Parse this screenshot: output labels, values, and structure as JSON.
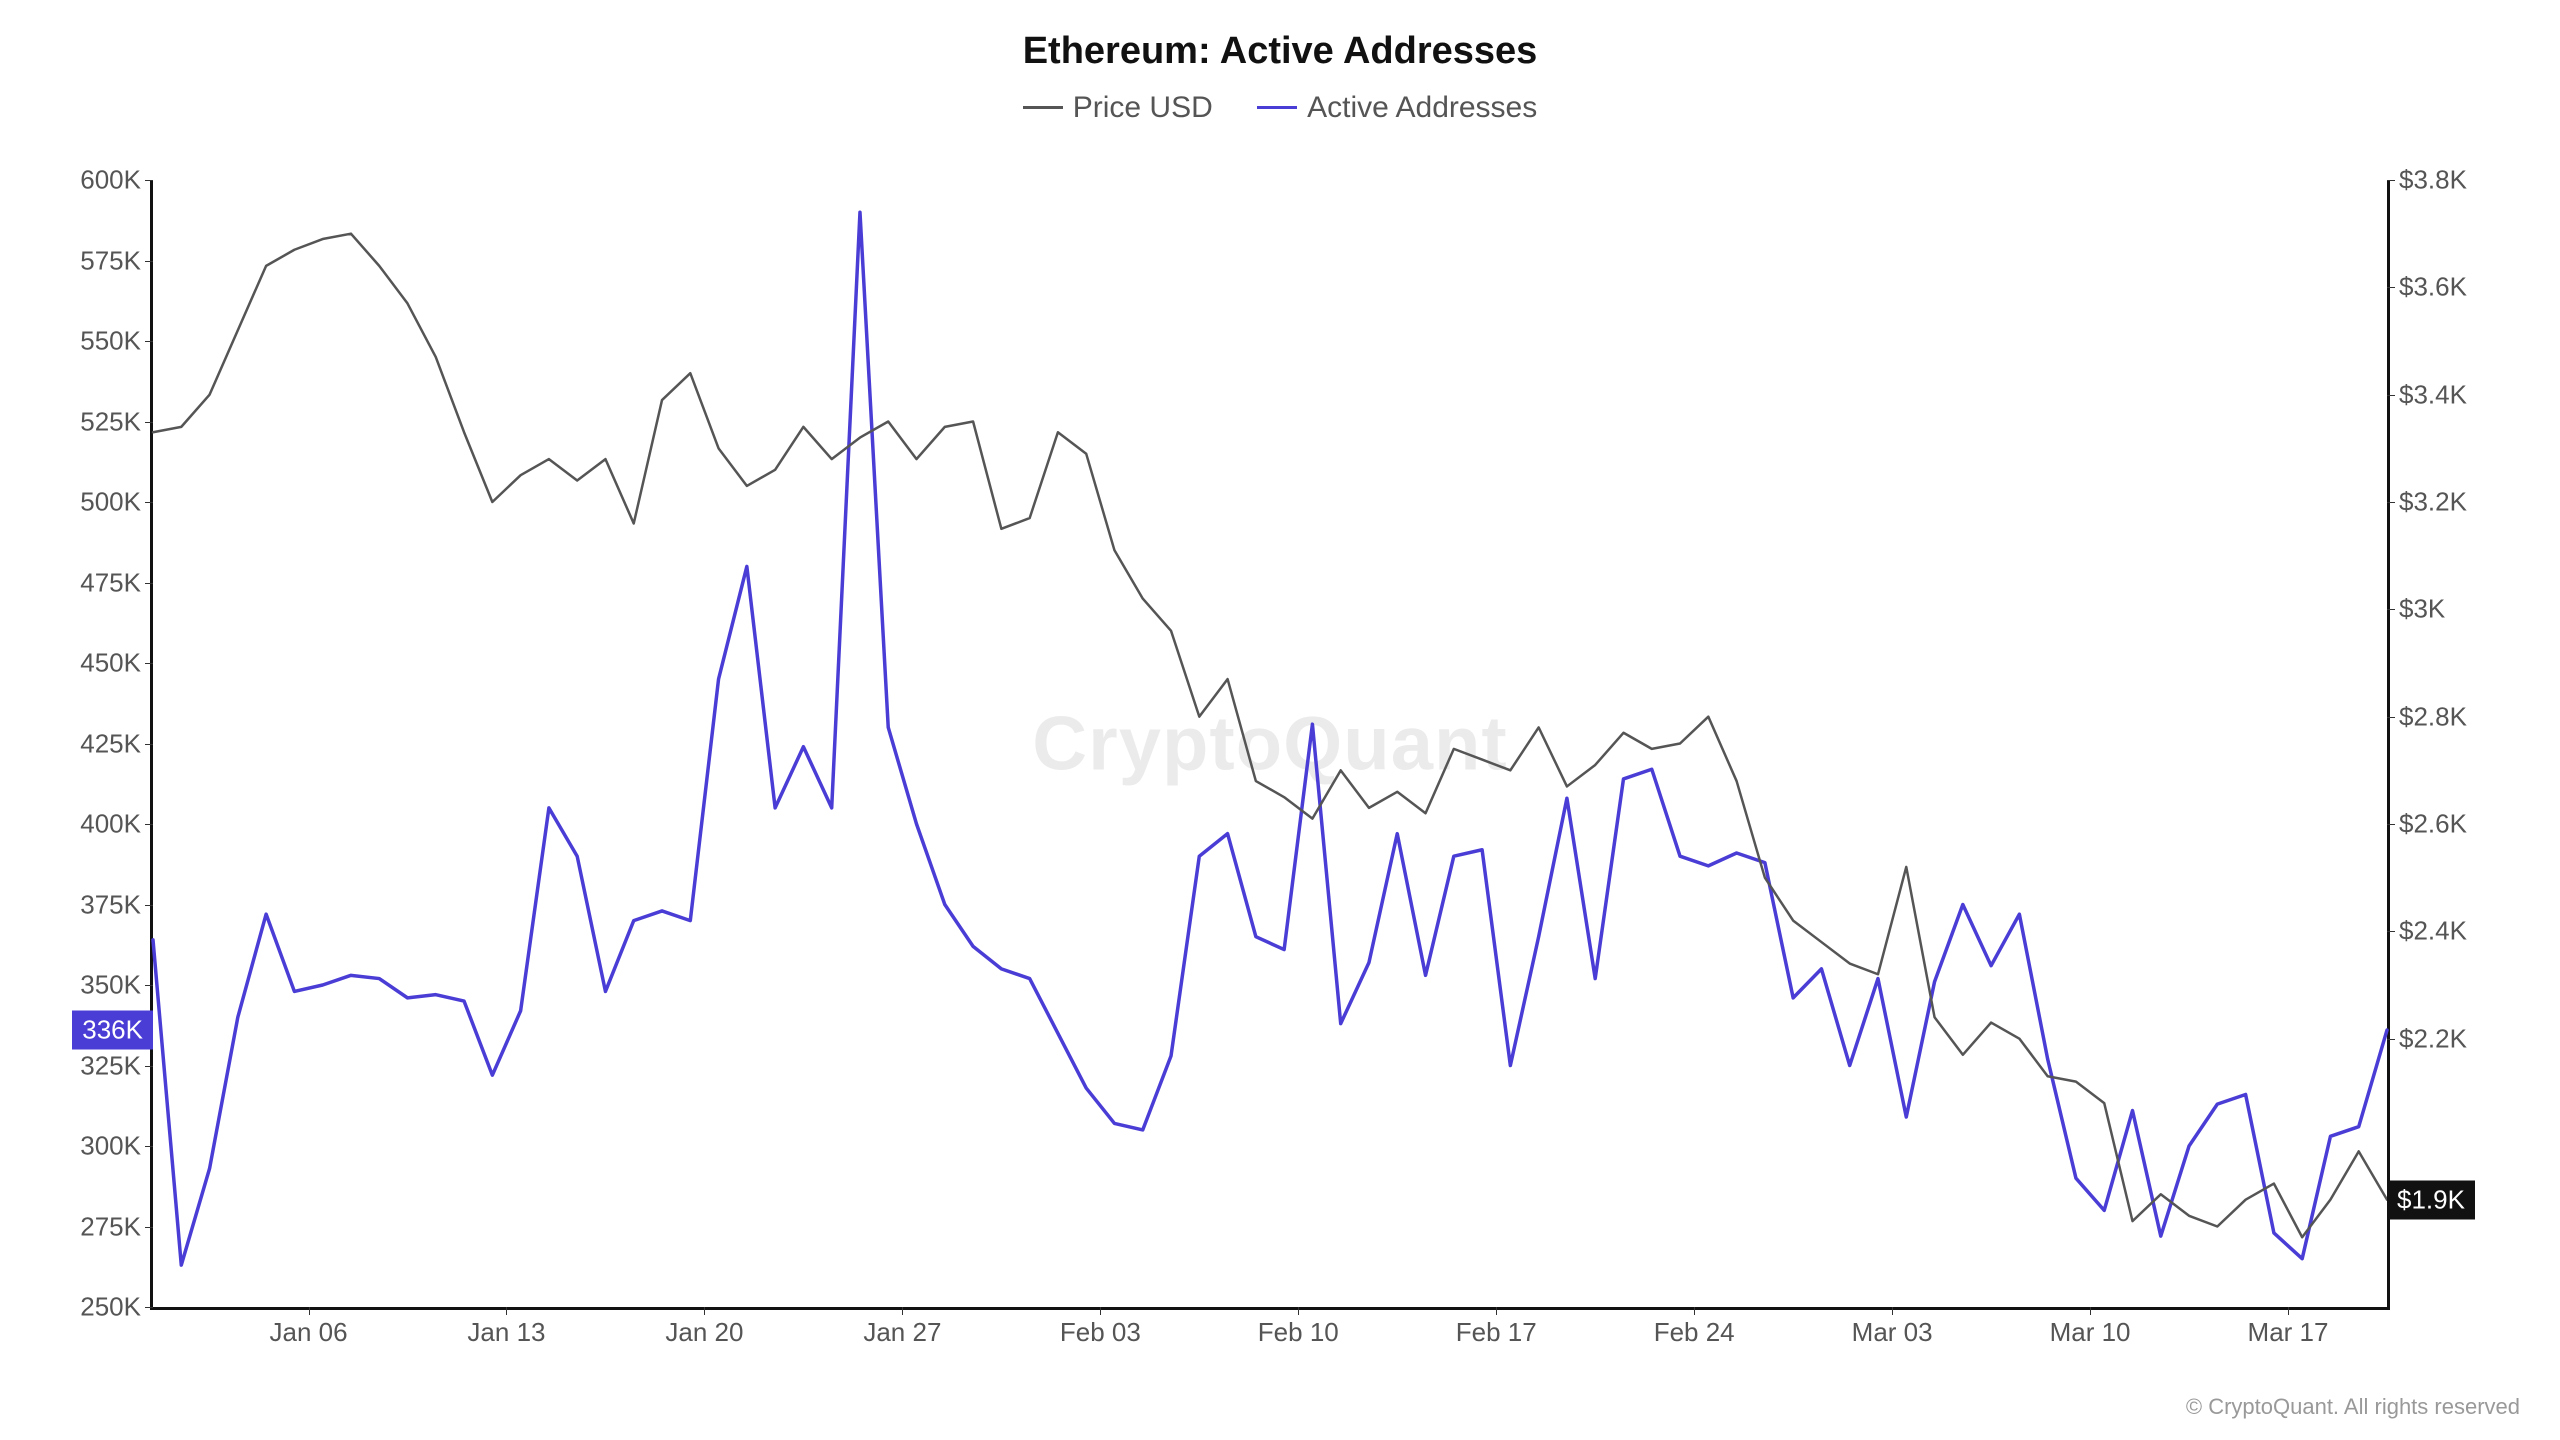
{
  "chart": {
    "title": "Ethereum: Active Addresses",
    "watermark": "CryptoQuant",
    "copyright": "© CryptoQuant. All rights reserved",
    "legend": [
      {
        "label": "Price USD",
        "color": "#555555"
      },
      {
        "label": "Active Addresses",
        "color": "#4a3dd6"
      }
    ],
    "left_axis": {
      "min": 250000,
      "max": 600000,
      "ticks": [
        {
          "v": 250000,
          "label": "250K"
        },
        {
          "v": 275000,
          "label": "275K"
        },
        {
          "v": 300000,
          "label": "300K"
        },
        {
          "v": 325000,
          "label": "325K"
        },
        {
          "v": 336000,
          "label": "336K",
          "badge": true
        },
        {
          "v": 350000,
          "label": "350K"
        },
        {
          "v": 375000,
          "label": "375K"
        },
        {
          "v": 400000,
          "label": "400K"
        },
        {
          "v": 425000,
          "label": "425K"
        },
        {
          "v": 450000,
          "label": "450K"
        },
        {
          "v": 475000,
          "label": "475K"
        },
        {
          "v": 500000,
          "label": "500K"
        },
        {
          "v": 525000,
          "label": "525K"
        },
        {
          "v": 550000,
          "label": "550K"
        },
        {
          "v": 575000,
          "label": "575K"
        },
        {
          "v": 600000,
          "label": "600K"
        }
      ]
    },
    "right_axis": {
      "min": 1700,
      "max": 3800,
      "ticks": [
        {
          "v": 1900,
          "label": "$1.9K",
          "badge": true
        },
        {
          "v": 2200,
          "label": "$2.2K"
        },
        {
          "v": 2400,
          "label": "$2.4K"
        },
        {
          "v": 2600,
          "label": "$2.6K"
        },
        {
          "v": 2800,
          "label": "$2.8K"
        },
        {
          "v": 3000,
          "label": "$3K"
        },
        {
          "v": 3200,
          "label": "$3.2K"
        },
        {
          "v": 3400,
          "label": "$3.4K"
        },
        {
          "v": 3600,
          "label": "$3.6K"
        },
        {
          "v": 3800,
          "label": "$3.8K"
        }
      ]
    },
    "x_axis": {
      "min": 0,
      "max": 79,
      "ticks": [
        {
          "v": 5.5,
          "label": "Jan 06"
        },
        {
          "v": 12.5,
          "label": "Jan 13"
        },
        {
          "v": 19.5,
          "label": "Jan 20"
        },
        {
          "v": 26.5,
          "label": "Jan 27"
        },
        {
          "v": 33.5,
          "label": "Feb 03"
        },
        {
          "v": 40.5,
          "label": "Feb 10"
        },
        {
          "v": 47.5,
          "label": "Feb 17"
        },
        {
          "v": 54.5,
          "label": "Feb 24"
        },
        {
          "v": 61.5,
          "label": "Mar 03"
        },
        {
          "v": 68.5,
          "label": "Mar 10"
        },
        {
          "v": 75.5,
          "label": "Mar 17"
        }
      ]
    },
    "series": {
      "price": {
        "color": "#555555",
        "width": 2.5,
        "data": [
          3330,
          3340,
          3400,
          3520,
          3640,
          3670,
          3690,
          3700,
          3640,
          3570,
          3470,
          3330,
          3200,
          3250,
          3280,
          3240,
          3280,
          3160,
          3390,
          3440,
          3300,
          3230,
          3260,
          3340,
          3280,
          3320,
          3350,
          3280,
          3340,
          3350,
          3150,
          3170,
          3330,
          3290,
          3110,
          3020,
          2960,
          2800,
          2870,
          2680,
          2650,
          2610,
          2700,
          2630,
          2660,
          2620,
          2740,
          2720,
          2700,
          2780,
          2670,
          2710,
          2770,
          2740,
          2750,
          2800,
          2680,
          2500,
          2420,
          2380,
          2340,
          2320,
          2520,
          2240,
          2170,
          2230,
          2200,
          2130,
          2120,
          2080,
          1860,
          1910,
          1870,
          1850,
          1900,
          1930,
          1830,
          1900,
          1990,
          1900
        ]
      },
      "active": {
        "color": "#4a3dd6",
        "width": 3.5,
        "data": [
          364000,
          263000,
          293000,
          340000,
          372000,
          348000,
          350000,
          353000,
          352000,
          346000,
          347000,
          345000,
          322000,
          342000,
          405000,
          390000,
          348000,
          370000,
          373000,
          370000,
          445000,
          480000,
          405000,
          424000,
          405000,
          590000,
          430000,
          400000,
          375000,
          362000,
          355000,
          352000,
          335000,
          318000,
          307000,
          305000,
          328000,
          390000,
          397000,
          365000,
          361000,
          431000,
          338000,
          357000,
          397000,
          353000,
          390000,
          392000,
          325000,
          365000,
          408000,
          352000,
          414000,
          417000,
          390000,
          387000,
          391000,
          388000,
          346000,
          355000,
          325000,
          352000,
          309000,
          351000,
          375000,
          356000,
          372000,
          327000,
          290000,
          280000,
          311000,
          272000,
          300000,
          313000,
          316000,
          273000,
          265000,
          303000,
          306000,
          336000
        ]
      }
    },
    "style": {
      "background_color": "#ffffff",
      "axis_color": "#111111",
      "tick_label_color": "#555555",
      "title_fontsize": 38,
      "legend_fontsize": 30,
      "tick_fontsize": 26,
      "watermark_fontsize": 76,
      "watermark_color": "rgba(0,0,0,0.08)"
    }
  }
}
